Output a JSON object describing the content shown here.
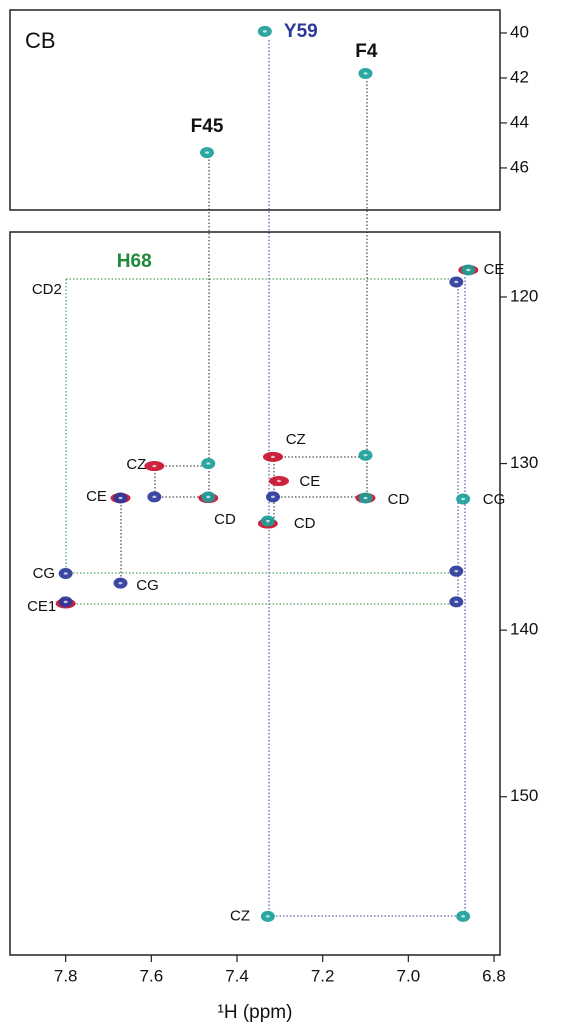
{
  "chart_data": [
    {
      "type": "scatter",
      "panel_label": "CB",
      "xlim": [
        7.93,
        6.786
      ],
      "ylim": [
        38.98,
        47.87
      ],
      "yticks": [
        40,
        42,
        44,
        46
      ],
      "series": [
        {
          "color": "#1aa09a",
          "x": [
            7.47,
            7.335,
            7.1
          ],
          "values": [
            45.32,
            39.93,
            41.8
          ]
        }
      ],
      "annotations": [
        {
          "text": "F45",
          "x": 7.47,
          "y": 44.18,
          "color": "#111111",
          "weight": "bold"
        },
        {
          "text": "Y59",
          "x": 7.251,
          "y": 39.96,
          "color": "#2b3a9a",
          "weight": "bold"
        },
        {
          "text": "F4",
          "x": 7.098,
          "y": 40.84,
          "color": "#111111",
          "weight": "bold"
        }
      ]
    },
    {
      "type": "scatter",
      "xlabel": "¹H (ppm)",
      "xlim": [
        7.93,
        6.786
      ],
      "ylim": [
        116.1,
        159.5
      ],
      "xticks": [
        7.8,
        7.6,
        7.4,
        7.2,
        {
          "value": 7,
          "label": "7.0"
        },
        6.8
      ],
      "yticks": [
        120,
        130,
        140,
        150
      ],
      "series": [
        {
          "color": "#c8102e",
          "x": [
            7.593,
            7.467,
            7.672,
            7.328,
            7.316,
            7.302,
            7.1,
            6.86,
            7.8
          ],
          "values": [
            130.15,
            132.07,
            132.07,
            133.6,
            129.6,
            131.05,
            132.07,
            118.38,
            138.4
          ]
        },
        {
          "color": "#2b3a9a",
          "x": [
            7.593,
            7.672,
            7.316,
            6.888,
            6.888,
            6.888,
            7.8,
            7.8,
            7.672
          ],
          "values": [
            132.0,
            132.07,
            132.0,
            119.1,
            136.46,
            138.3,
            136.6,
            138.3,
            137.18
          ]
        },
        {
          "color": "#1aa09a",
          "x": [
            7.467,
            7.467,
            7.328,
            7.1,
            7.1,
            6.872,
            6.86,
            7.328,
            6.872
          ],
          "values": [
            130.0,
            132.0,
            133.45,
            129.5,
            132.07,
            132.13,
            118.38,
            157.18,
            157.18
          ]
        }
      ],
      "annotations": [
        {
          "text": "H68",
          "x": 7.64,
          "y": 117.9,
          "color": "#1e8a3a",
          "weight": "bold"
        },
        {
          "text": "CD2",
          "x": 7.844,
          "y": 119.58,
          "color": "#111111",
          "weight": "normal"
        },
        {
          "text": "CE",
          "x": 6.8,
          "y": 118.38,
          "color": "#111111",
          "weight": "normal"
        },
        {
          "text": "CZ",
          "x": 7.263,
          "y": 128.59,
          "color": "#111111",
          "weight": "normal"
        },
        {
          "text": "CZ",
          "x": 7.635,
          "y": 130.09,
          "color": "#111111",
          "weight": "normal"
        },
        {
          "text": "CE",
          "x": 7.23,
          "y": 131.11,
          "color": "#111111",
          "weight": "normal"
        },
        {
          "text": "CE",
          "x": 7.728,
          "y": 132.01,
          "color": "#111111",
          "weight": "normal"
        },
        {
          "text": "CD",
          "x": 7.428,
          "y": 133.39,
          "color": "#111111",
          "weight": "normal"
        },
        {
          "text": "CD",
          "x": 7.242,
          "y": 133.63,
          "color": "#111111",
          "weight": "normal"
        },
        {
          "text": "CD",
          "x": 7.023,
          "y": 132.19,
          "color": "#111111",
          "weight": "normal"
        },
        {
          "text": "CG",
          "x": 6.8,
          "y": 132.19,
          "color": "#111111",
          "weight": "normal"
        },
        {
          "text": "CG",
          "x": 7.851,
          "y": 136.64,
          "color": "#111111",
          "weight": "normal"
        },
        {
          "text": "CG",
          "x": 7.609,
          "y": 137.36,
          "color": "#111111",
          "weight": "normal"
        },
        {
          "text": "CE1",
          "x": 7.856,
          "y": 138.62,
          "color": "#111111",
          "weight": "normal"
        },
        {
          "text": "CZ",
          "x": 7.393,
          "y": 157.18,
          "color": "#111111",
          "weight": "normal"
        }
      ]
    }
  ]
}
